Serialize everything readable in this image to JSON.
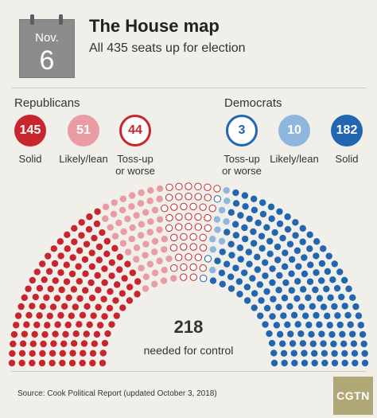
{
  "header": {
    "month": "Nov.",
    "day": "6",
    "title": "The House map",
    "subtitle": "All 435 seats up for election"
  },
  "groups": {
    "republicans": "Republicans",
    "democrats": "Democrats"
  },
  "categories": [
    {
      "value": "145",
      "label": "Solid",
      "style": "filled",
      "color": "#c8262f"
    },
    {
      "value": "51",
      "label": "Likely/lean",
      "style": "filled",
      "color": "#e99ca3"
    },
    {
      "value": "44",
      "label": "Toss-up or worse",
      "label_lines": [
        "Toss-up",
        "or worse"
      ],
      "style": "outline",
      "color": "#c8262f"
    },
    {
      "value": "3",
      "label": "Toss-up or worse",
      "label_lines": [
        "Toss-up",
        "or worse"
      ],
      "style": "outline",
      "color": "#2366b0"
    },
    {
      "value": "10",
      "label": "Likely/lean",
      "style": "filled",
      "color": "#8fb7de"
    },
    {
      "value": "182",
      "label": "Solid",
      "style": "filled",
      "color": "#2366b0"
    }
  ],
  "chart_data": {
    "type": "hemicycle",
    "total_seats": 435,
    "series": [
      {
        "name": "Solid",
        "party": "Republicans",
        "values": [
          145
        ],
        "color": "#c8262f",
        "style": "filled"
      },
      {
        "name": "Likely/lean",
        "party": "Republicans",
        "values": [
          51
        ],
        "color": "#e99ca3",
        "style": "filled"
      },
      {
        "name": "Toss-up or worse",
        "party": "Republicans",
        "values": [
          44
        ],
        "color": "#c8262f",
        "style": "outline"
      },
      {
        "name": "Toss-up or worse",
        "party": "Democrats",
        "values": [
          3
        ],
        "color": "#2366b0",
        "style": "outline"
      },
      {
        "name": "Likely/lean",
        "party": "Democrats",
        "values": [
          10
        ],
        "color": "#8fb7de",
        "style": "filled"
      },
      {
        "name": "Solid",
        "party": "Democrats",
        "values": [
          182
        ],
        "color": "#2366b0",
        "style": "filled"
      }
    ],
    "majority": "218",
    "majority_label": "needed for control"
  },
  "footer": {
    "source": "Source: Cook Political Report (updated October 3, 2018)",
    "logo": "CGTN"
  }
}
